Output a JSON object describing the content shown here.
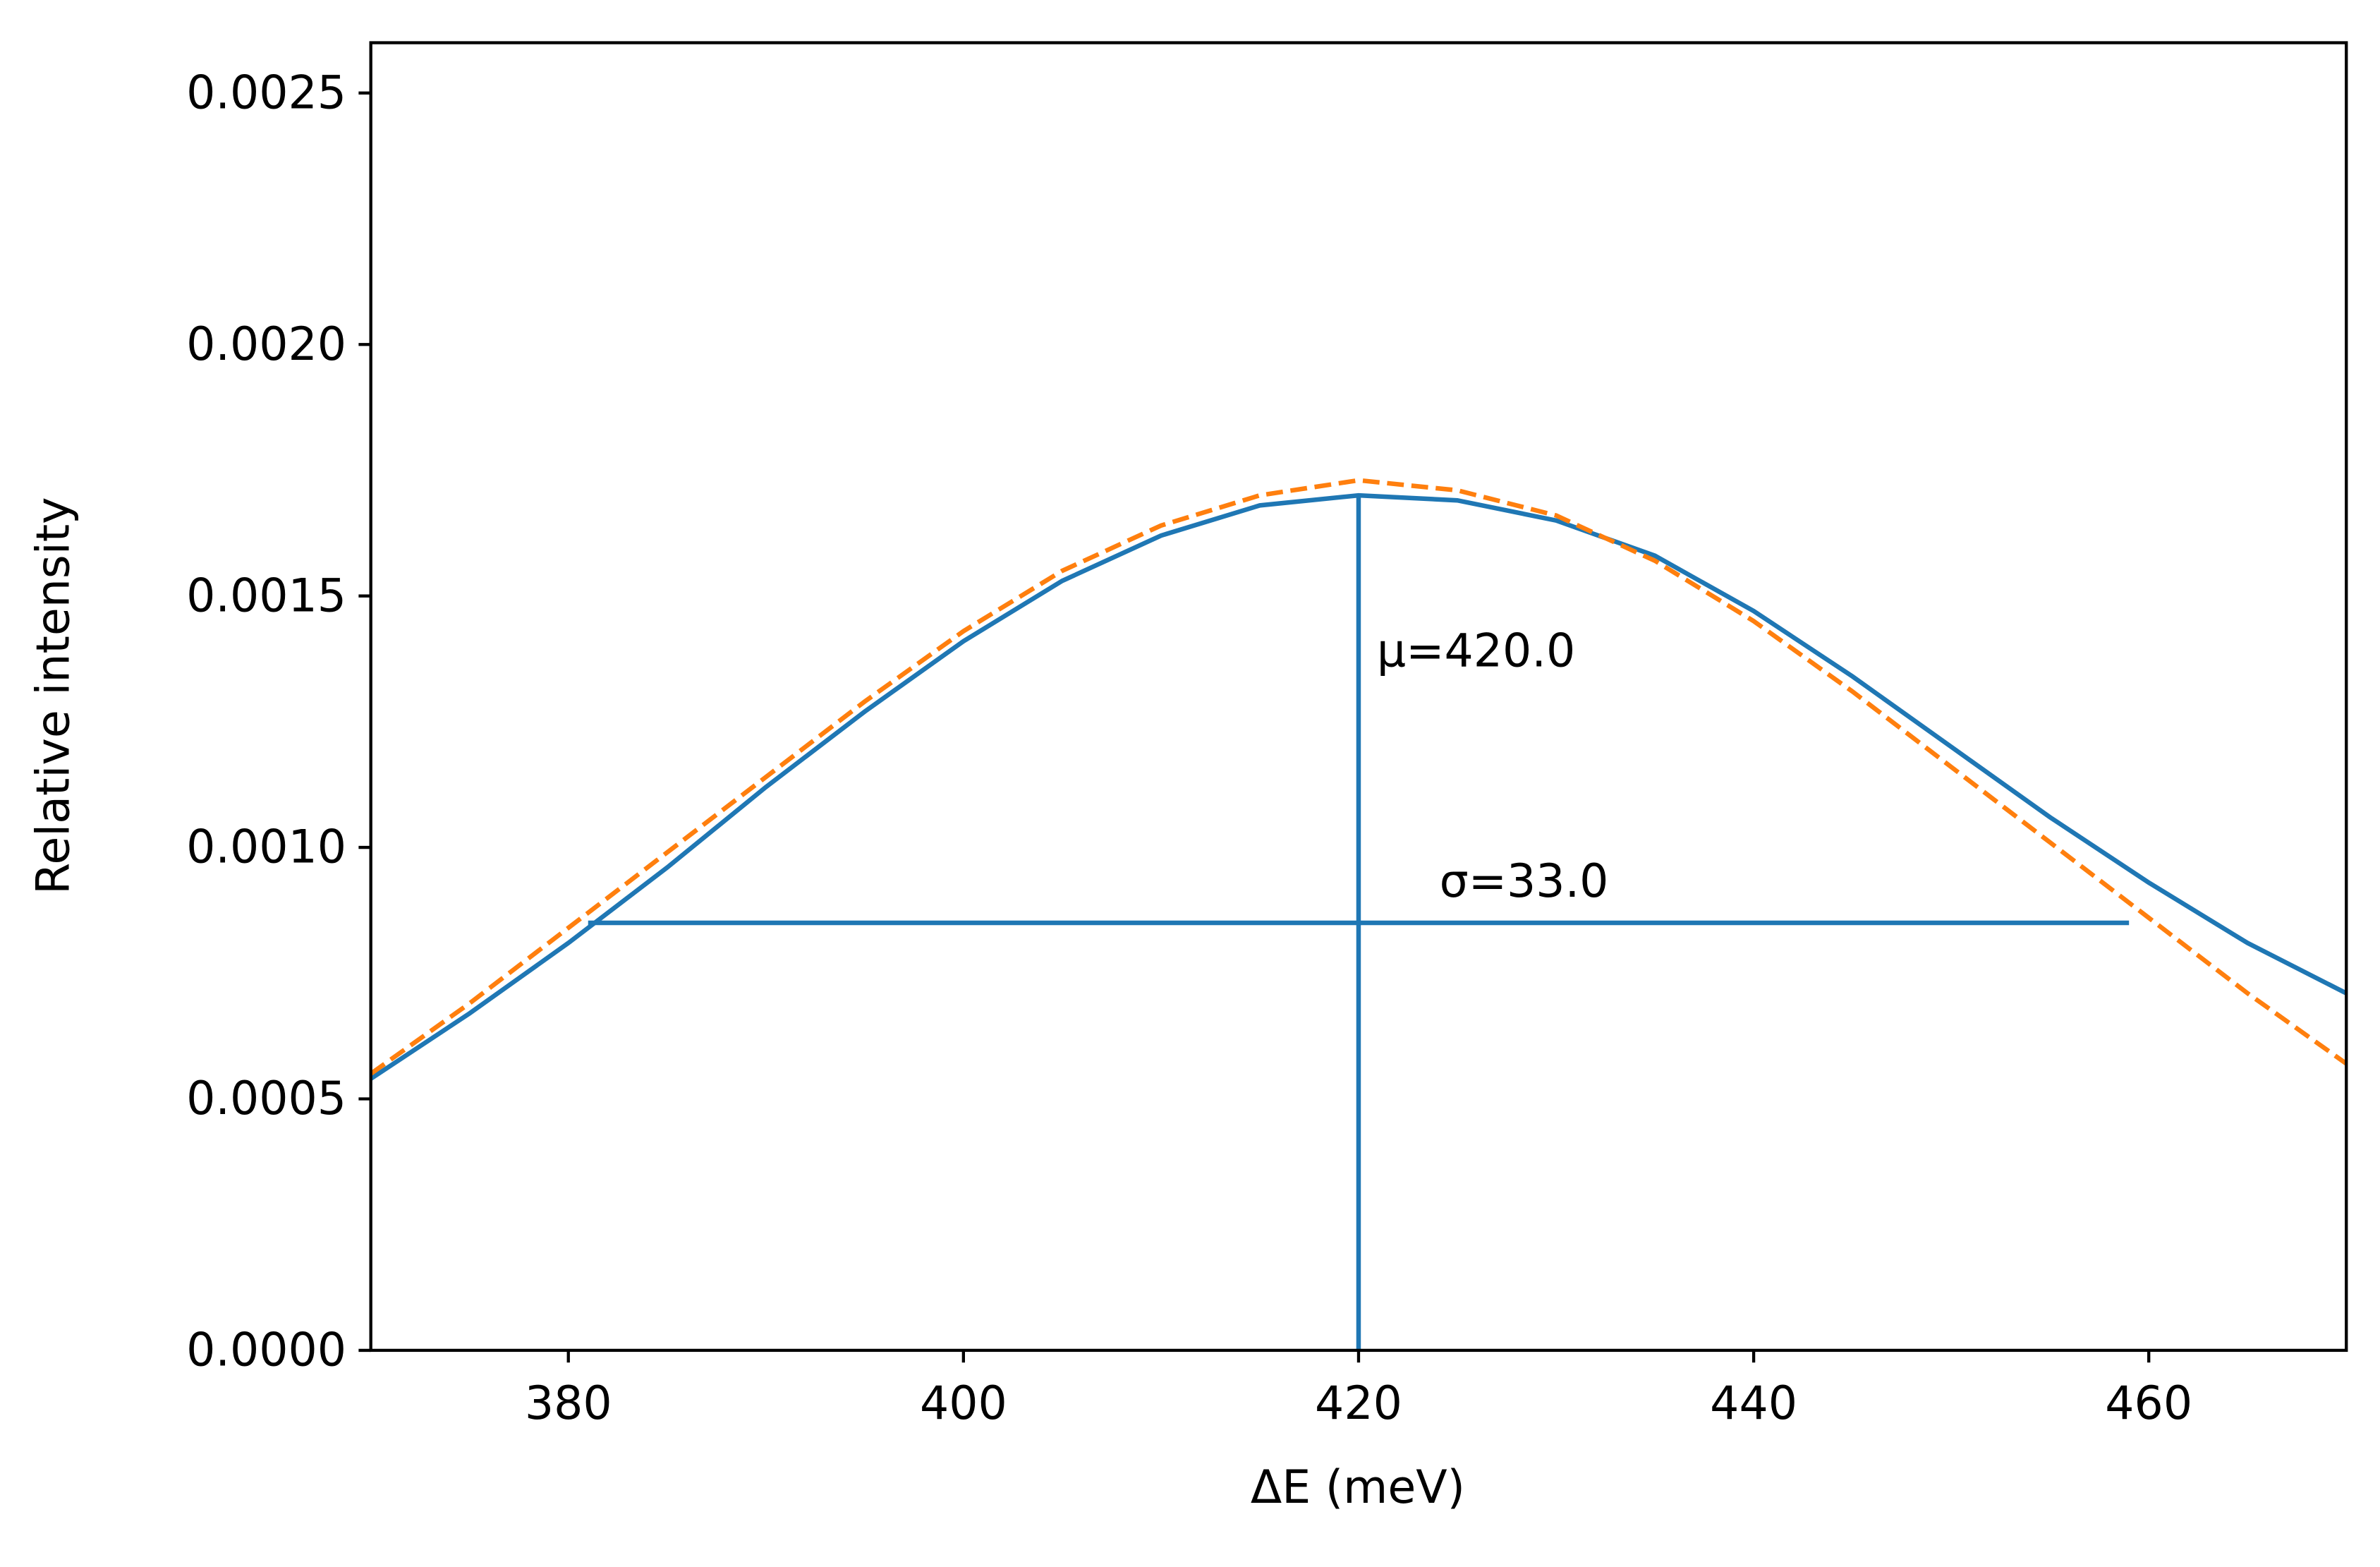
{
  "chart_data": {
    "type": "line",
    "x_label": "ΔE (meV)",
    "y_label": "Relative intensity",
    "x": [
      370,
      375,
      380,
      385,
      390,
      395,
      400,
      405,
      410,
      415,
      420,
      425,
      430,
      435,
      440,
      445,
      450,
      455,
      460,
      465,
      470
    ],
    "series": [
      {
        "color": "#1f77b4",
        "dashed": false,
        "values": [
          0.00054,
          0.00067,
          0.00081,
          0.00096,
          0.00112,
          0.00127,
          0.00141,
          0.00153,
          0.00162,
          0.00168,
          0.0017,
          0.00169,
          0.00165,
          0.00158,
          0.00147,
          0.00134,
          0.0012,
          0.00106,
          0.00093,
          0.00081,
          0.00071
        ]
      },
      {
        "color": "#ff7f0e",
        "dashed": true,
        "values": [
          0.00055,
          0.00069,
          0.00084,
          0.00099,
          0.00114,
          0.00129,
          0.00143,
          0.00155,
          0.00164,
          0.0017,
          0.00173,
          0.00171,
          0.00166,
          0.00157,
          0.00145,
          0.00131,
          0.00116,
          0.00101,
          0.00086,
          0.00071,
          0.00057
        ]
      }
    ],
    "mean_line": {
      "x": 420,
      "y": [
        0,
        0.0017
      ],
      "color": "#1f77b4",
      "label": "μ=420.0"
    },
    "width_line": {
      "y": 0.00085,
      "x": [
        381,
        459
      ],
      "color": "#1f77b4",
      "label": "σ=33.0"
    },
    "xlim": [
      370,
      470
    ],
    "xticks": [
      380,
      400,
      420,
      440,
      460
    ],
    "ylim": [
      0,
      0.0026
    ],
    "yticks": [
      {
        "value": 0,
        "label": "0.0000"
      },
      {
        "value": 0.0005,
        "label": "0.0005"
      },
      {
        "value": 0.001,
        "label": "0.0010"
      },
      {
        "value": 0.0015,
        "label": "0.0015"
      },
      {
        "value": 0.002,
        "label": "0.0020"
      },
      {
        "value": 0.0025,
        "label": "0.0025"
      }
    ],
    "grid": false
  }
}
